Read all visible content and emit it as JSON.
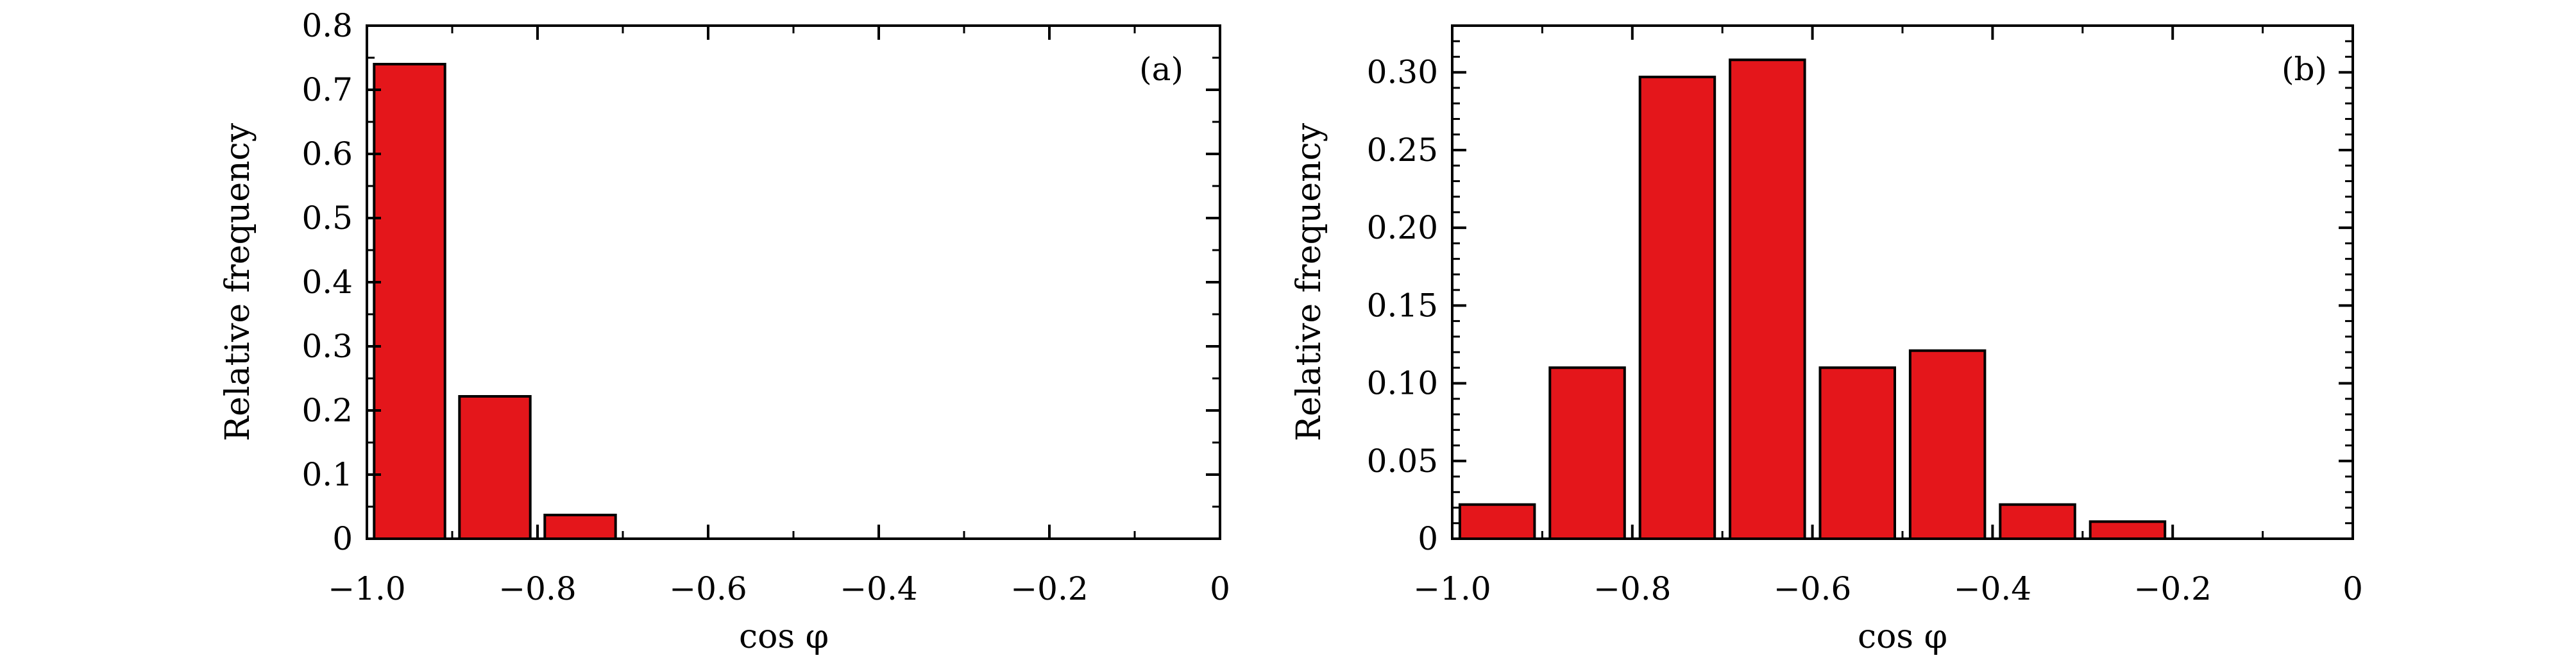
{
  "chart_data": [
    {
      "type": "bar",
      "panel_label": "(a)",
      "xlabel": "cos φ",
      "ylabel": "Relative frequency",
      "xlim": [
        -1.0,
        0
      ],
      "ylim": [
        0,
        0.8
      ],
      "xticks": [
        -1.0,
        -0.8,
        -0.6,
        -0.4,
        -0.2,
        0
      ],
      "xtick_labels": [
        "−1.0",
        "−0.8",
        "−0.6",
        "−0.4",
        "−0.2",
        "0"
      ],
      "yticks": [
        0,
        0.1,
        0.2,
        0.3,
        0.4,
        0.5,
        0.6,
        0.7,
        0.8
      ],
      "ytick_labels": [
        "0",
        "0.1",
        "0.2",
        "0.3",
        "0.4",
        "0.5",
        "0.6",
        "0.7",
        "0.8"
      ],
      "bin_edges": [
        -1.0,
        -0.9,
        -0.8,
        -0.7,
        -0.6,
        -0.5,
        -0.4,
        -0.3,
        -0.2,
        -0.1,
        0
      ],
      "values": [
        0.74,
        0.222,
        0.037,
        0,
        0,
        0,
        0,
        0,
        0,
        0
      ],
      "bar_color": "#e4161b",
      "edge_color": "#000000"
    },
    {
      "type": "bar",
      "panel_label": "(b)",
      "xlabel": "cos φ",
      "ylabel": "Relative frequency",
      "xlim": [
        -1.0,
        0
      ],
      "ylim": [
        0,
        0.33
      ],
      "xticks": [
        -1.0,
        -0.8,
        -0.6,
        -0.4,
        -0.2,
        0
      ],
      "xtick_labels": [
        "−1.0",
        "−0.8",
        "−0.6",
        "−0.4",
        "−0.2",
        "0"
      ],
      "yticks": [
        0,
        0.05,
        0.1,
        0.15,
        0.2,
        0.25,
        0.3
      ],
      "ytick_labels": [
        "0",
        "0.05",
        "0.10",
        "0.15",
        "0.20",
        "0.25",
        "0.30"
      ],
      "bin_edges": [
        -1.0,
        -0.9,
        -0.8,
        -0.7,
        -0.6,
        -0.5,
        -0.4,
        -0.3,
        -0.2,
        -0.1,
        0
      ],
      "values": [
        0.022,
        0.11,
        0.297,
        0.308,
        0.11,
        0.121,
        0.022,
        0.011,
        0,
        0
      ],
      "bar_color": "#e4161b",
      "edge_color": "#000000"
    }
  ]
}
